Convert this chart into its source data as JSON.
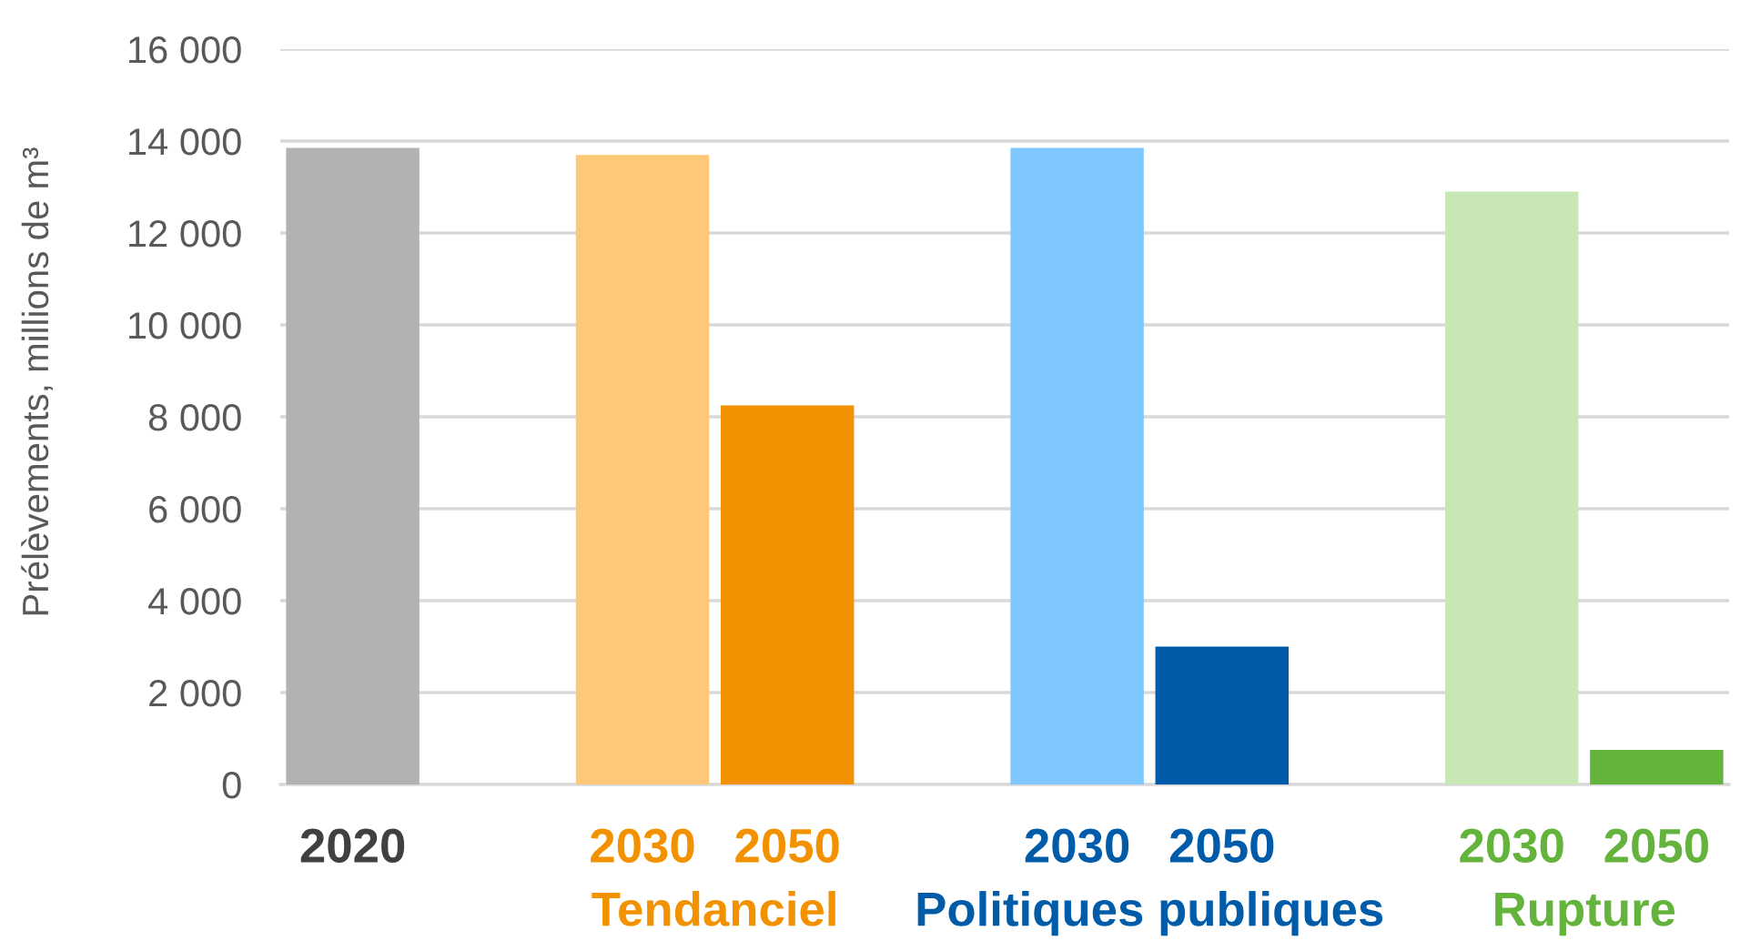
{
  "chart_data": {
    "type": "bar",
    "ylabel": "Prélèvements, millions de m³",
    "categories": [
      "2020",
      null,
      "2030",
      "2050",
      null,
      "2030",
      "2050",
      null,
      "2030",
      "2050"
    ],
    "series": [
      {
        "color": "#b2b2b2",
        "values": [
          13850,
          null,
          null,
          null,
          null,
          null,
          null,
          null,
          null,
          null
        ]
      },
      {
        "name": "Tendanciel",
        "color": "#f39200",
        "colors": [
          null,
          null,
          "#ffc878",
          "#f39200",
          null,
          null,
          null,
          null,
          null,
          null
        ],
        "values": [
          null,
          null,
          13700,
          8250,
          null,
          null,
          null,
          null,
          null,
          null
        ]
      },
      {
        "name": "Politiques publiques",
        "color": "#005ca8",
        "colors": [
          null,
          null,
          null,
          null,
          null,
          "#7fc8ff",
          "#005ca8",
          null,
          null,
          null
        ],
        "values": [
          null,
          null,
          null,
          null,
          null,
          13850,
          3000,
          null,
          null,
          null
        ]
      },
      {
        "name": "Rupture",
        "color": "#63b33c",
        "colors": [
          null,
          null,
          null,
          null,
          null,
          null,
          null,
          null,
          "#c9e7b5",
          "#63b33c"
        ],
        "values": [
          null,
          null,
          null,
          null,
          null,
          null,
          null,
          null,
          12900,
          750
        ]
      }
    ],
    "ylim": [
      0,
      16000
    ],
    "yticks": [
      0,
      {
        "value": 2000,
        "label": "2 000"
      },
      {
        "value": 4000,
        "label": "4 000"
      },
      {
        "value": 6000,
        "label": "6 000"
      },
      {
        "value": 8000,
        "label": "8 000"
      },
      {
        "value": 10000,
        "label": "10 000"
      },
      {
        "value": 12000,
        "label": "12 000"
      },
      {
        "value": 14000,
        "label": "14 000"
      },
      {
        "value": 16000,
        "label": "16 000"
      }
    ],
    "grid": "y"
  }
}
